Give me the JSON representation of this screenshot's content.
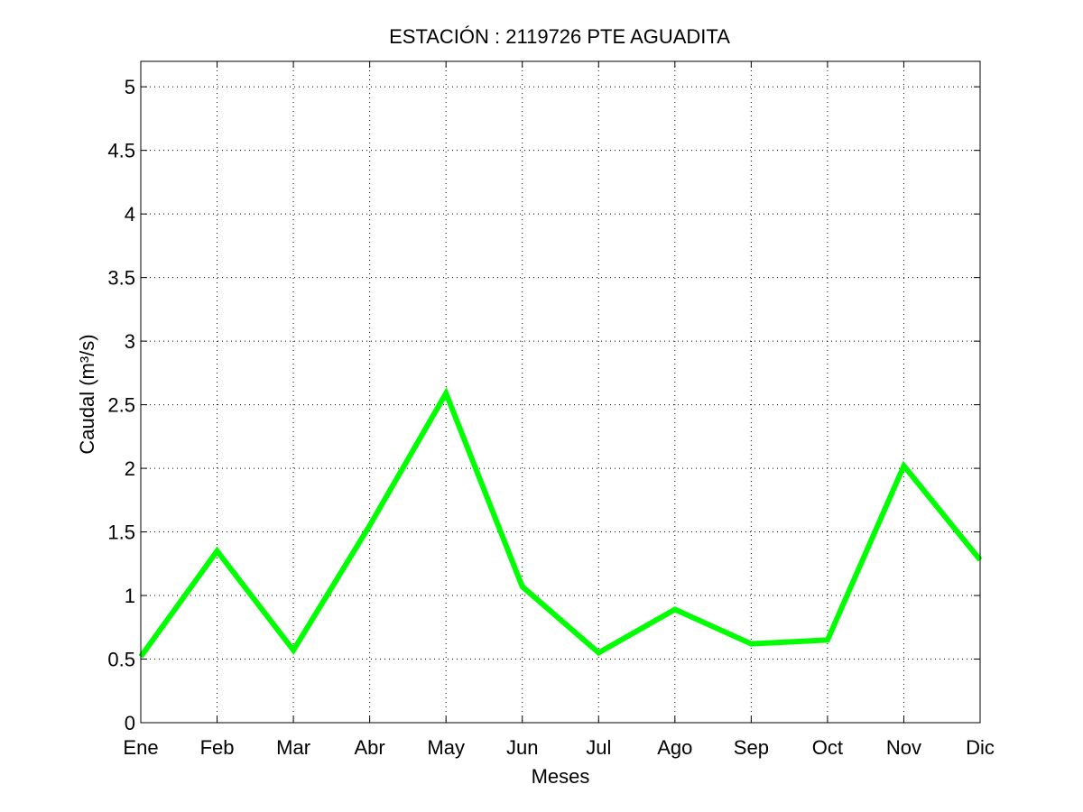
{
  "chart_data": {
    "type": "line",
    "title": "ESTACIÓN :  2119726  PTE AGUADITA",
    "xlabel": "Meses",
    "ylabel": "Caudal (m³/s)",
    "categories": [
      "Ene",
      "Feb",
      "Mar",
      "Abr",
      "May",
      "Jun",
      "Jul",
      "Ago",
      "Sep",
      "Oct",
      "Nov",
      "Dic"
    ],
    "ylim": [
      0,
      5.2
    ],
    "yticks": [
      "0",
      "0.5",
      "1",
      "1.5",
      "2",
      "2.5",
      "3",
      "3.5",
      "4",
      "4.5",
      "5"
    ],
    "grid": true,
    "series": [
      {
        "color": "#00ff00",
        "values": [
          0.52,
          1.35,
          0.57,
          1.55,
          2.59,
          1.07,
          0.55,
          0.89,
          0.62,
          0.65,
          2.02,
          1.28
        ]
      }
    ]
  }
}
